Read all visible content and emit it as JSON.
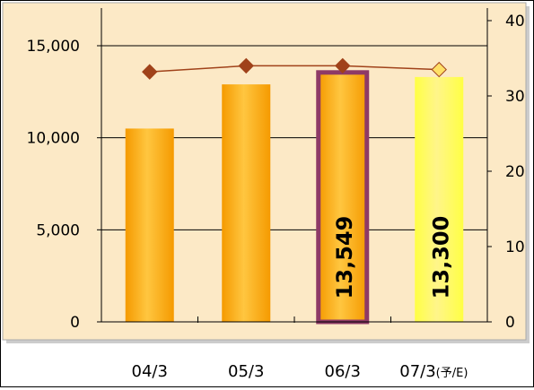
{
  "chart_data": {
    "type": "bar",
    "categories": [
      "04/3",
      "05/3",
      "06/3",
      "07/3"
    ],
    "category_suffix": [
      "",
      "",
      "",
      "(予/E)"
    ],
    "bars": {
      "values": [
        10500,
        12900,
        13549,
        13300
      ],
      "labels": [
        "",
        "",
        "13,549",
        "13,300"
      ],
      "colors": [
        "#F59A00",
        "#F59A00",
        "#F59A00",
        "#FFFF44"
      ],
      "highlight_border_color": "#8E3A66"
    },
    "line": {
      "values": [
        33.2,
        34,
        34,
        33.5
      ],
      "marker_colors": [
        "#A0421A",
        "#A0421A",
        "#A0421A",
        "#FFE066"
      ],
      "color": "#A0421A"
    },
    "y_left": {
      "ylim": [
        0,
        17000
      ],
      "ticks": [
        0,
        5000,
        10000,
        15000
      ],
      "tick_labels": [
        "0",
        "5,000",
        "10,000",
        "15,000"
      ]
    },
    "y_right": {
      "ylim": [
        0,
        40
      ],
      "ticks": [
        0,
        10,
        20,
        30,
        40
      ],
      "tick_labels": [
        "0",
        "10",
        "20",
        "30",
        "40"
      ]
    },
    "plot_background": "#FCE9C6",
    "grid": true
  }
}
